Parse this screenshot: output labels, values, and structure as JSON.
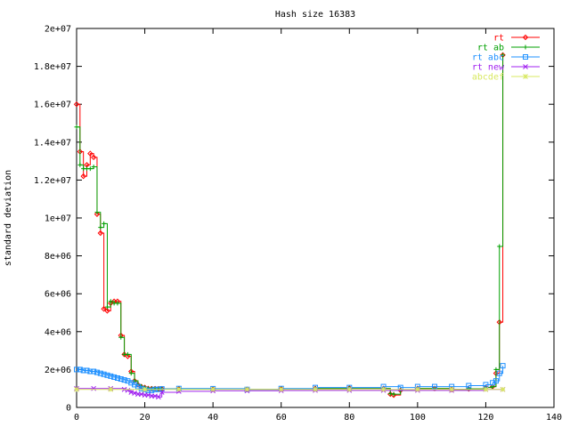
{
  "chart_data": {
    "type": "line",
    "title": "Hash size 16383",
    "xlabel": "",
    "ylabel": "standard deviation",
    "xlim": [
      0,
      140
    ],
    "ylim": [
      0,
      20000000
    ],
    "xticks": [
      0,
      20,
      40,
      60,
      80,
      100,
      120,
      140
    ],
    "xtick_labels": [
      "0",
      "20",
      "40",
      "60",
      "80",
      "100",
      "120",
      "140"
    ],
    "yticks": [
      0,
      2000000,
      4000000,
      6000000,
      8000000,
      10000000,
      12000000,
      14000000,
      16000000,
      18000000,
      20000000
    ],
    "ytick_labels": [
      "0",
      "2e+06",
      "4e+06",
      "6e+06",
      "8e+06",
      "1e+07",
      "1.2e+07",
      "1.4e+07",
      "1.6e+07",
      "1.8e+07",
      "2e+07"
    ],
    "grid": false,
    "legend_position": "top-right",
    "series": [
      {
        "name": "rt",
        "color": "#ff0000",
        "marker": "diamond",
        "x": [
          0,
          1,
          2,
          3,
          4,
          5,
          6,
          7,
          8,
          9,
          10,
          11,
          12,
          13,
          14,
          15,
          16,
          17,
          18,
          19,
          20,
          21,
          22,
          23,
          24,
          25,
          30,
          40,
          50,
          60,
          70,
          80,
          90,
          92,
          93,
          95,
          100,
          105,
          110,
          115,
          120,
          122,
          123,
          124,
          125
        ],
        "y": [
          16000000,
          13500000,
          12200000,
          12800000,
          13400000,
          13200000,
          10200000,
          9200000,
          5200000,
          5100000,
          5500000,
          5600000,
          5600000,
          3800000,
          2800000,
          2700000,
          1900000,
          1400000,
          1200000,
          1100000,
          1050000,
          1000000,
          990000,
          990000,
          980000,
          980000,
          980000,
          960000,
          950000,
          980000,
          1000000,
          1020000,
          1000000,
          700000,
          650000,
          900000,
          1000000,
          1000000,
          950000,
          980000,
          1050000,
          1100000,
          1800000,
          4500000,
          18600000
        ]
      },
      {
        "name": "rt ab",
        "color": "#00a000",
        "marker": "plus",
        "x": [
          0,
          1,
          2,
          3,
          4,
          5,
          6,
          7,
          8,
          9,
          10,
          11,
          12,
          13,
          14,
          15,
          16,
          17,
          18,
          19,
          20,
          21,
          22,
          23,
          24,
          25,
          30,
          40,
          50,
          60,
          70,
          80,
          90,
          92,
          93,
          95,
          100,
          105,
          110,
          115,
          120,
          122,
          123,
          124,
          125
        ],
        "y": [
          14800000,
          12800000,
          12600000,
          12600000,
          12600000,
          12700000,
          10300000,
          9500000,
          9700000,
          5300000,
          5600000,
          5500000,
          5500000,
          3700000,
          2800000,
          2800000,
          1800000,
          1400000,
          1200000,
          1100000,
          1050000,
          1000000,
          990000,
          990000,
          980000,
          980000,
          980000,
          960000,
          950000,
          980000,
          1000000,
          1020000,
          1000000,
          720000,
          700000,
          900000,
          1000000,
          1000000,
          950000,
          980000,
          1050000,
          1100000,
          2000000,
          8500000,
          18600000
        ]
      },
      {
        "name": "rt abc",
        "color": "#1e90ff",
        "marker": "square",
        "x": [
          0,
          1,
          2,
          3,
          4,
          5,
          6,
          7,
          8,
          9,
          10,
          11,
          12,
          13,
          14,
          15,
          16,
          17,
          18,
          19,
          20,
          21,
          22,
          23,
          24,
          25,
          30,
          40,
          50,
          60,
          70,
          80,
          90,
          95,
          100,
          105,
          110,
          115,
          120,
          122,
          123,
          124,
          125
        ],
        "y": [
          2000000,
          2000000,
          1950000,
          1950000,
          1900000,
          1900000,
          1850000,
          1800000,
          1750000,
          1700000,
          1650000,
          1600000,
          1550000,
          1500000,
          1450000,
          1400000,
          1300000,
          1200000,
          1100000,
          1000000,
          950000,
          900000,
          900000,
          950000,
          950000,
          980000,
          1000000,
          990000,
          950000,
          1000000,
          1050000,
          1050000,
          1100000,
          1050000,
          1100000,
          1100000,
          1100000,
          1150000,
          1200000,
          1300000,
          1400000,
          1800000,
          2200000
        ]
      },
      {
        "name": "rt new",
        "color": "#a020f0",
        "marker": "cross",
        "x": [
          0,
          5,
          10,
          14,
          15,
          16,
          17,
          18,
          19,
          20,
          21,
          22,
          23,
          24,
          25,
          30,
          40,
          50,
          60,
          70,
          80,
          90,
          100,
          110,
          120,
          125
        ],
        "y": [
          1000000,
          1000000,
          1000000,
          950000,
          900000,
          800000,
          750000,
          700000,
          700000,
          650000,
          650000,
          600000,
          600000,
          550000,
          800000,
          850000,
          880000,
          880000,
          890000,
          900000,
          900000,
          900000,
          900000,
          900000,
          950000,
          950000
        ]
      },
      {
        "name": "abcdef",
        "color": "#d8e860",
        "marker": "star",
        "x": [
          0,
          10,
          20,
          30,
          40,
          50,
          60,
          70,
          80,
          90,
          100,
          110,
          120,
          125
        ],
        "y": [
          950000,
          950000,
          950000,
          950000,
          950000,
          950000,
          950000,
          950000,
          950000,
          950000,
          950000,
          950000,
          950000,
          950000
        ]
      }
    ]
  }
}
